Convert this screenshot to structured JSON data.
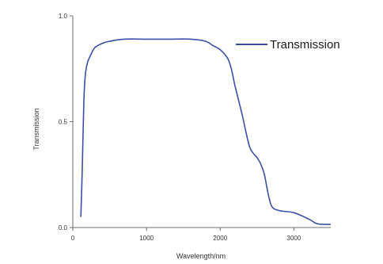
{
  "chart_data": {
    "type": "line",
    "title": "",
    "xlabel": "Wavelength/nm",
    "ylabel": "Transmission",
    "xlim": [
      0,
      3500
    ],
    "ylim": [
      0,
      1.0
    ],
    "x_ticks": [
      0,
      1000,
      2000,
      3000
    ],
    "y_ticks": [
      0.0,
      0.5,
      1.0
    ],
    "x_tick_labels": [
      "0",
      "1000",
      "2000",
      "3000"
    ],
    "y_tick_labels": [
      "0.0",
      "0.5",
      "1.0"
    ],
    "grid": false,
    "legend_position": "top-right",
    "series": [
      {
        "name": "Transmission",
        "color": "#3b4fa8",
        "x": [
          110,
          130,
          150,
          170,
          200,
          250,
          300,
          400,
          500,
          700,
          1000,
          1300,
          1600,
          1800,
          1900,
          2000,
          2100,
          2150,
          2200,
          2250,
          2300,
          2350,
          2400,
          2450,
          2500,
          2550,
          2600,
          2650,
          2700,
          2800,
          3000,
          3200,
          3300,
          3400,
          3500
        ],
        "y": [
          0.05,
          0.3,
          0.6,
          0.72,
          0.78,
          0.82,
          0.85,
          0.87,
          0.88,
          0.89,
          0.89,
          0.89,
          0.89,
          0.88,
          0.86,
          0.84,
          0.8,
          0.75,
          0.67,
          0.6,
          0.53,
          0.45,
          0.38,
          0.35,
          0.33,
          0.3,
          0.25,
          0.16,
          0.1,
          0.08,
          0.07,
          0.04,
          0.02,
          0.015,
          0.015
        ]
      }
    ]
  }
}
